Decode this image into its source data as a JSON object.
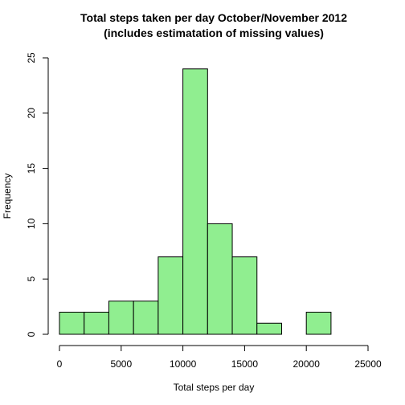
{
  "chart_data": {
    "type": "bar",
    "title_line1": "Total steps taken per day October/November 2012",
    "title_line2": "(includes estimatation of missing values)",
    "xlabel": "Total steps per day",
    "ylabel": "Frequency",
    "xlim": [
      0,
      25000
    ],
    "ylim": [
      0,
      25
    ],
    "x_ticks": [
      0,
      5000,
      10000,
      15000,
      20000,
      25000
    ],
    "y_ticks": [
      0,
      5,
      10,
      15,
      20,
      25
    ],
    "bin_width": 2000,
    "bins": [
      {
        "start": 0,
        "end": 2000,
        "count": 2
      },
      {
        "start": 2000,
        "end": 4000,
        "count": 2
      },
      {
        "start": 4000,
        "end": 6000,
        "count": 3
      },
      {
        "start": 6000,
        "end": 8000,
        "count": 3
      },
      {
        "start": 8000,
        "end": 10000,
        "count": 7
      },
      {
        "start": 10000,
        "end": 12000,
        "count": 24
      },
      {
        "start": 12000,
        "end": 14000,
        "count": 10
      },
      {
        "start": 14000,
        "end": 16000,
        "count": 7
      },
      {
        "start": 16000,
        "end": 18000,
        "count": 1
      },
      {
        "start": 18000,
        "end": 20000,
        "count": 0
      },
      {
        "start": 20000,
        "end": 22000,
        "count": 2
      }
    ],
    "bar_color": "#90ee90",
    "grid": false
  }
}
